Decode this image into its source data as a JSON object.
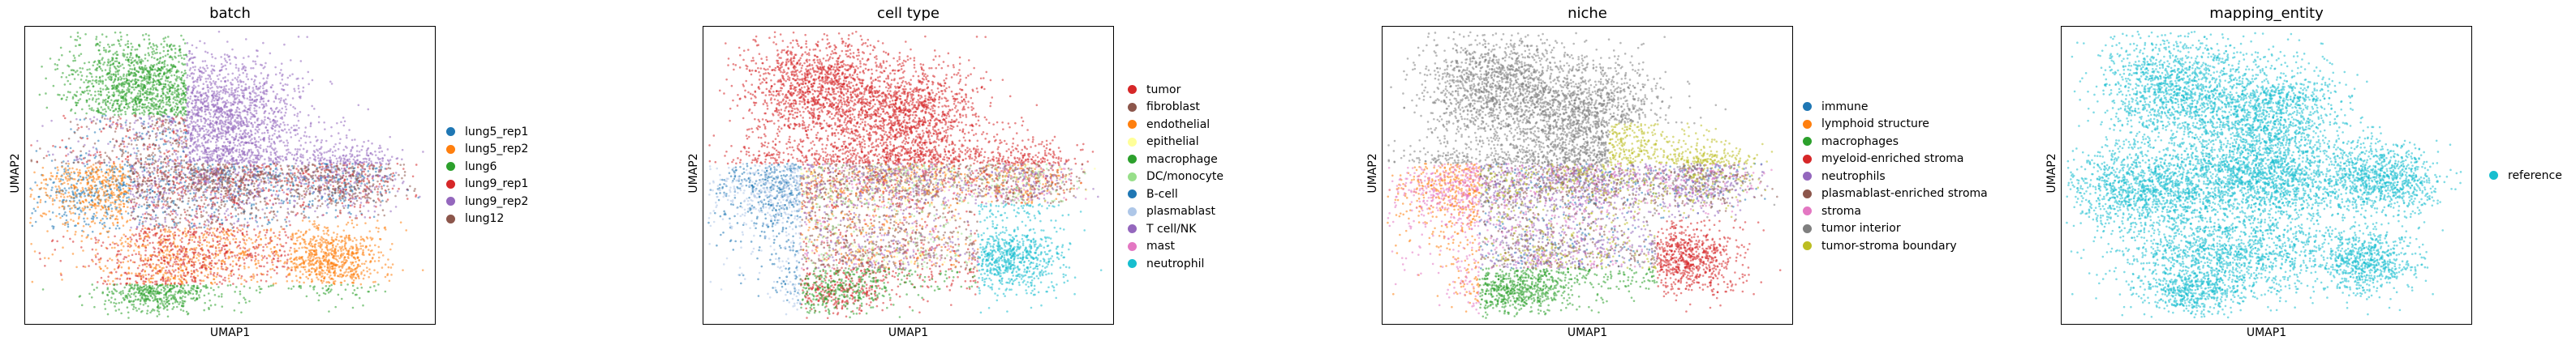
{
  "chart_data": [
    {
      "type": "scatter",
      "title": "batch",
      "xlabel": "UMAP1",
      "ylabel": "UMAP2",
      "grid": false,
      "legend_position": "right",
      "series": [
        {
          "name": "lung5_rep1",
          "color": "#1f77b4"
        },
        {
          "name": "lung5_rep2",
          "color": "#ff7f0e"
        },
        {
          "name": "lung6",
          "color": "#2ca02c"
        },
        {
          "name": "lung9_rep1",
          "color": "#d62728"
        },
        {
          "name": "lung9_rep2",
          "color": "#9467bd"
        },
        {
          "name": "lung12",
          "color": "#8c564b"
        }
      ]
    },
    {
      "type": "scatter",
      "title": "cell type",
      "xlabel": "UMAP1",
      "ylabel": "UMAP2",
      "grid": false,
      "legend_position": "right",
      "series": [
        {
          "name": "tumor",
          "color": "#d62728"
        },
        {
          "name": "fibroblast",
          "color": "#8c564b"
        },
        {
          "name": "endothelial",
          "color": "#ff7f0e"
        },
        {
          "name": "epithelial",
          "color": "#ffff99"
        },
        {
          "name": "macrophage",
          "color": "#2ca02c"
        },
        {
          "name": "DC/monocyte",
          "color": "#98df8a"
        },
        {
          "name": "B-cell",
          "color": "#1f77b4"
        },
        {
          "name": "plasmablast",
          "color": "#aec7e8"
        },
        {
          "name": "T cell/NK",
          "color": "#9467bd"
        },
        {
          "name": "mast",
          "color": "#e377c2"
        },
        {
          "name": "neutrophil",
          "color": "#17becf"
        }
      ]
    },
    {
      "type": "scatter",
      "title": "niche",
      "xlabel": "UMAP1",
      "ylabel": "UMAP2",
      "grid": false,
      "legend_position": "right",
      "series": [
        {
          "name": "immune",
          "color": "#1f77b4"
        },
        {
          "name": "lymphoid structure",
          "color": "#ff7f0e"
        },
        {
          "name": "macrophages",
          "color": "#2ca02c"
        },
        {
          "name": "myeloid-enriched stroma",
          "color": "#d62728"
        },
        {
          "name": "neutrophils",
          "color": "#9467bd"
        },
        {
          "name": "plasmablast-enriched stroma",
          "color": "#8c564b"
        },
        {
          "name": "stroma",
          "color": "#e377c2"
        },
        {
          "name": "tumor interior",
          "color": "#7f7f7f"
        },
        {
          "name": "tumor-stroma boundary",
          "color": "#bcbd22"
        }
      ]
    },
    {
      "type": "scatter",
      "title": "mapping_entity",
      "xlabel": "UMAP1",
      "ylabel": "UMAP2",
      "grid": false,
      "legend_position": "right",
      "series": [
        {
          "name": "reference",
          "color": "#17becf"
        }
      ]
    }
  ]
}
